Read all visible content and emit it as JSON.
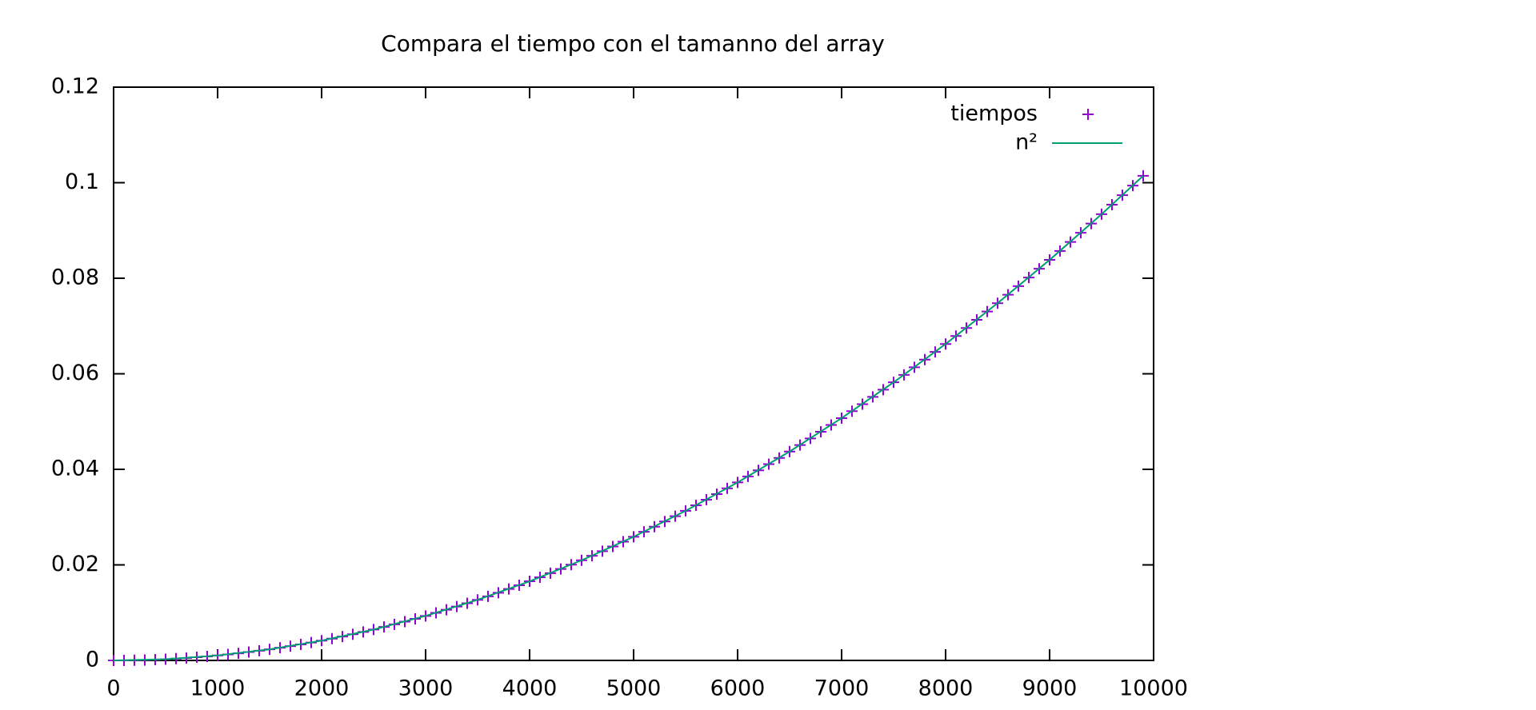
{
  "chart_data": {
    "type": "scatter",
    "title": "Compara el tiempo con el tamanno del array",
    "xlim": [
      0,
      10000
    ],
    "xticks": [
      0,
      1000,
      2000,
      3000,
      4000,
      5000,
      6000,
      7000,
      8000,
      9000,
      10000
    ],
    "ylim": [
      0,
      0.12
    ],
    "yticks": [
      0,
      0.02,
      0.04,
      0.06,
      0.08,
      0.1,
      0.12
    ],
    "legend": "top right",
    "grid": false,
    "series": [
      {
        "name": "tiempos",
        "style": "points",
        "color": "#9400d3",
        "x": [
          0,
          100,
          200,
          300,
          400,
          500,
          600,
          700,
          800,
          900,
          1000,
          1100,
          1200,
          1300,
          1400,
          1500,
          1600,
          1700,
          1800,
          1900,
          2000,
          2100,
          2200,
          2300,
          2400,
          2500,
          2600,
          2700,
          2800,
          2900,
          3000,
          3100,
          3200,
          3300,
          3400,
          3500,
          3600,
          3700,
          3800,
          3900,
          4000,
          4100,
          4200,
          4300,
          4400,
          4500,
          4600,
          4700,
          4800,
          4900,
          5000,
          5100,
          5200,
          5300,
          5400,
          5500,
          5600,
          5700,
          5800,
          5900,
          6000,
          6100,
          6200,
          6300,
          6400,
          6500,
          6600,
          6700,
          6800,
          6900,
          7000,
          7100,
          7200,
          7300,
          7400,
          7500,
          7600,
          7700,
          7800,
          7900,
          8000,
          8100,
          8200,
          8300,
          8400,
          8500,
          8600,
          8700,
          8800,
          8900,
          9000,
          9100,
          9200,
          9300,
          9400,
          9500,
          9600,
          9700,
          9800,
          9900
        ],
        "values": [
          0,
          1e-05,
          4e-05,
          9e-05,
          0.00017,
          0.00026,
          0.00037,
          0.00051,
          0.00066,
          0.00084,
          0.00104,
          0.00125,
          0.00149,
          0.00175,
          0.00203,
          0.00233,
          0.00265,
          0.00299,
          0.00335,
          0.00374,
          0.00414,
          0.00456,
          0.00501,
          0.00548,
          0.00596,
          0.00647,
          0.007,
          0.00755,
          0.00811,
          0.0087,
          0.00932,
          0.00995,
          0.0106,
          0.01127,
          0.01196,
          0.01268,
          0.01341,
          0.01417,
          0.01495,
          0.01574,
          0.01656,
          0.0174,
          0.01826,
          0.01914,
          0.02004,
          0.02096,
          0.0219,
          0.02286,
          0.02385,
          0.02485,
          0.02588,
          0.02692,
          0.02799,
          0.02907,
          0.03018,
          0.03131,
          0.03246,
          0.03363,
          0.03482,
          0.03603,
          0.03726,
          0.03851,
          0.03979,
          0.04108,
          0.04239,
          0.04373,
          0.04508,
          0.04646,
          0.04786,
          0.04928,
          0.05072,
          0.05217,
          0.05365,
          0.05516,
          0.05668,
          0.05822,
          0.05978,
          0.06137,
          0.06297,
          0.06459,
          0.06624,
          0.06791,
          0.06959,
          0.0713,
          0.07303,
          0.07478,
          0.07655,
          0.07834,
          0.08015,
          0.08198,
          0.08384,
          0.08571,
          0.0876,
          0.08952,
          0.09145,
          0.09341,
          0.09539,
          0.09738,
          0.0994,
          0.10144
        ]
      },
      {
        "name": "n²",
        "style": "line",
        "color": "#009e73",
        "x": [
          0,
          500,
          1000,
          1500,
          2000,
          2500,
          3000,
          3500,
          4000,
          4500,
          5000,
          5500,
          6000,
          6500,
          7000,
          7500,
          8000,
          8500,
          9000,
          9500,
          9900
        ],
        "values": [
          0,
          0.00026,
          0.00104,
          0.00233,
          0.00414,
          0.00647,
          0.00932,
          0.01268,
          0.01656,
          0.02096,
          0.02588,
          0.03131,
          0.03726,
          0.04373,
          0.05072,
          0.05822,
          0.06624,
          0.07478,
          0.08384,
          0.09341,
          0.10144
        ]
      }
    ]
  }
}
